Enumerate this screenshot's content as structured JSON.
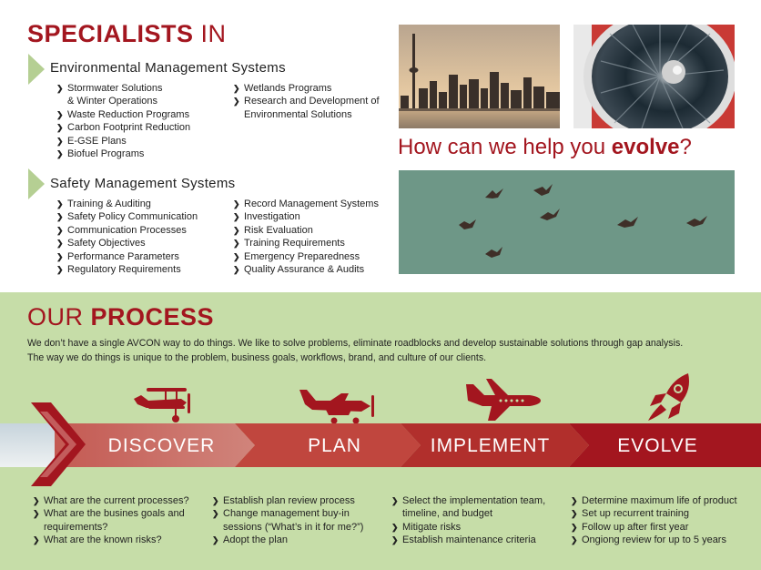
{
  "specialists": {
    "heading_bold": "SPECIALISTS",
    "heading_light": "IN",
    "env": {
      "title": "Environmental Management Systems",
      "col1": [
        "Stormwater Solutions",
        "& Winter Operations",
        "Waste Reduction Programs",
        "Carbon Footprint Reduction",
        "E-GSE Plans",
        "Biofuel Programs"
      ],
      "col2": [
        "Wetlands Programs",
        "Research and Development of",
        "Environmental Solutions"
      ]
    },
    "safety": {
      "title": "Safety Management Systems",
      "col1": [
        "Training & Auditing",
        "Safety Policy Communication",
        "Communication Processes",
        "Safety Objectives",
        "Performance Parameters",
        "Regulatory Requirements"
      ],
      "col2": [
        "Record Management Systems",
        "Investigation",
        "Risk Evaluation",
        "Training Requirements",
        "Emergency Preparedness",
        "Quality Assurance & Audits"
      ]
    }
  },
  "tagline": {
    "pre": "How can we help you ",
    "bold": "evolve",
    "post": "?"
  },
  "process": {
    "heading_light": "OUR",
    "heading_bold": "PROCESS",
    "intro_line1": "We don’t have a single AVCON way to do things. We like to solve problems, eliminate roadblocks and develop sustainable solutions through gap analysis.",
    "intro_line2": "The way we do things is unique to the problem, business goals, workflows, brand, and culture of our clients.",
    "stages": [
      {
        "label": "DISCOVER",
        "icon": "biplane-icon",
        "items": [
          "What are the current processes?",
          "What are the busines goals and",
          "requirements?",
          "What are the known risks?"
        ]
      },
      {
        "label": "PLAN",
        "icon": "prop-plane-icon",
        "items": [
          "Establish plan review process",
          "Change management buy-in",
          "sessions (“What’s in it for me?”)",
          "Adopt the plan"
        ]
      },
      {
        "label": "IMPLEMENT",
        "icon": "jet-icon",
        "items": [
          "Select the implementation team,",
          "timeline, and budget",
          "Mitigate risks",
          "Establish maintenance criteria"
        ]
      },
      {
        "label": "EVOLVE",
        "icon": "rocket-icon",
        "items": [
          "Determine maximum life of product",
          "Set up recurrent training",
          "Follow up after first year",
          "Ongiong review for up to 5 years"
        ]
      }
    ]
  },
  "colors": {
    "brand_red": "#a3161f",
    "green_bg": "#c6dda8",
    "accent_green": "#b5cf93"
  }
}
